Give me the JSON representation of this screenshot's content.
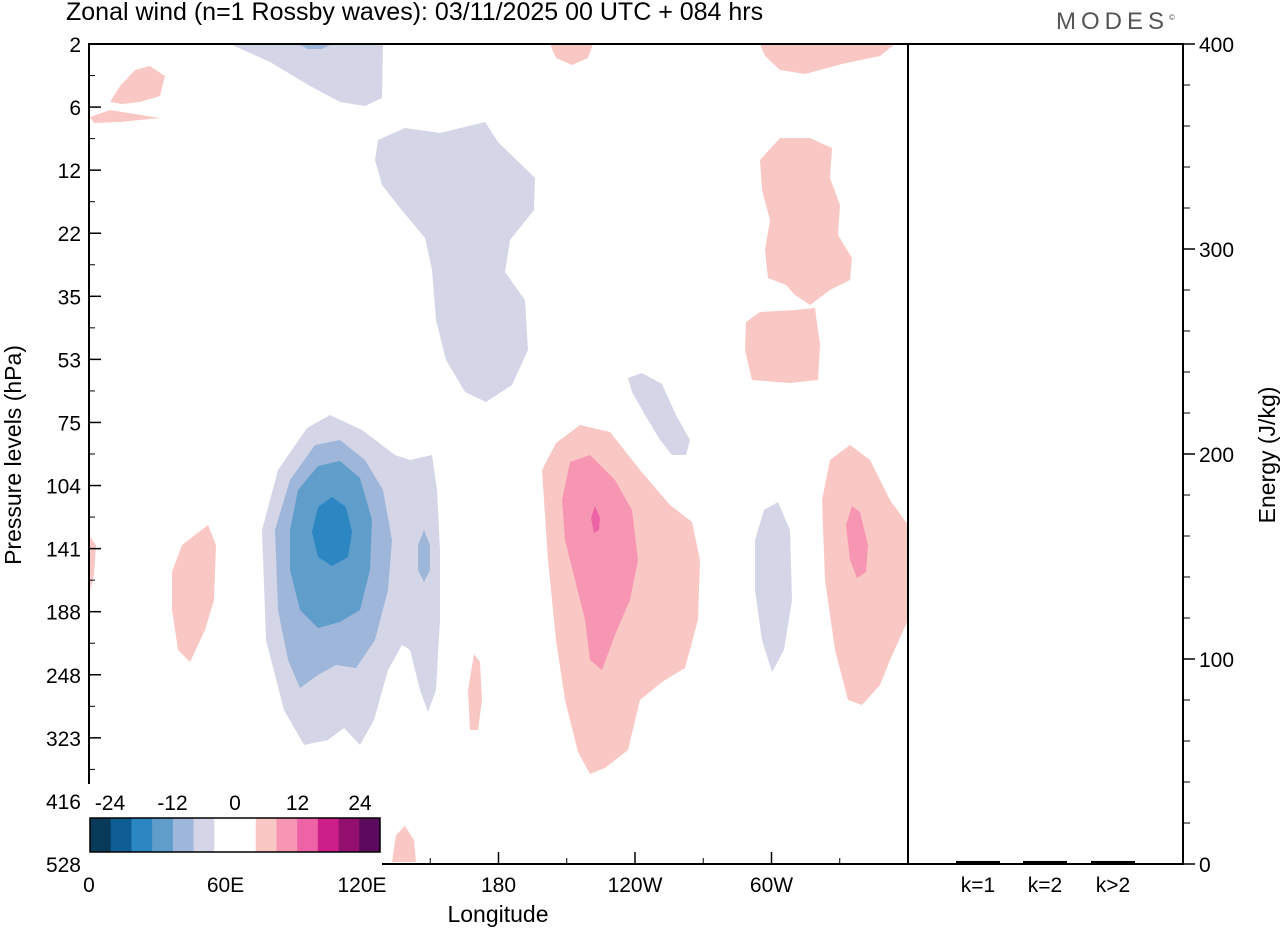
{
  "title": "Zonal wind (n=1 Rossby waves):  03/11/2025  00 UTC  + 084 hrs",
  "logo": "MODES",
  "logo_mark": "©",
  "chart_data": [
    {
      "type": "contour",
      "variable": "Zonal wind (n=1 Rossby waves)",
      "xlabel": "Longitude",
      "ylabel": "Pressure levels (hPa)",
      "xlim": [
        0,
        360
      ],
      "x_tick_labels": [
        "0",
        "60E",
        "120E",
        "180",
        "120W",
        "60W"
      ],
      "y_tick_labels": [
        "2",
        "6",
        "12",
        "22",
        "35",
        "53",
        "75",
        "104",
        "141",
        "188",
        "248",
        "323",
        "416",
        "528"
      ],
      "colorbar": {
        "tick_labels": [
          "-24",
          "-12",
          "0",
          "12",
          "24"
        ],
        "colors": [
          "#083a5a",
          "#0f5e93",
          "#2b86c2",
          "#5f9ecb",
          "#9eb6d9",
          "#d4d6e8",
          "#ffffff",
          "#ffffff",
          "#f9c8c4",
          "#f796b3",
          "#ee63a6",
          "#cc1f8a",
          "#93106f",
          "#5c0a5e"
        ]
      },
      "features": [
        {
          "name": "negative-core",
          "lon": 105,
          "level_index": 7.9,
          "min_value": -18
        },
        {
          "name": "positive-core",
          "lon": 216,
          "level_index": 7.5,
          "max_value": 12
        },
        {
          "name": "positive-core-east",
          "lon": 338,
          "level_index": 8.0,
          "max_value": 9
        }
      ]
    },
    {
      "type": "bar",
      "categories": [
        "k=1",
        "k=2",
        "k>2"
      ],
      "values": [
        1,
        1,
        1
      ],
      "ylabel": "Energy (J/kg)",
      "ylim": [
        0,
        400
      ],
      "y_tick_labels": [
        "0",
        "100",
        "200",
        "300",
        "400"
      ]
    }
  ]
}
